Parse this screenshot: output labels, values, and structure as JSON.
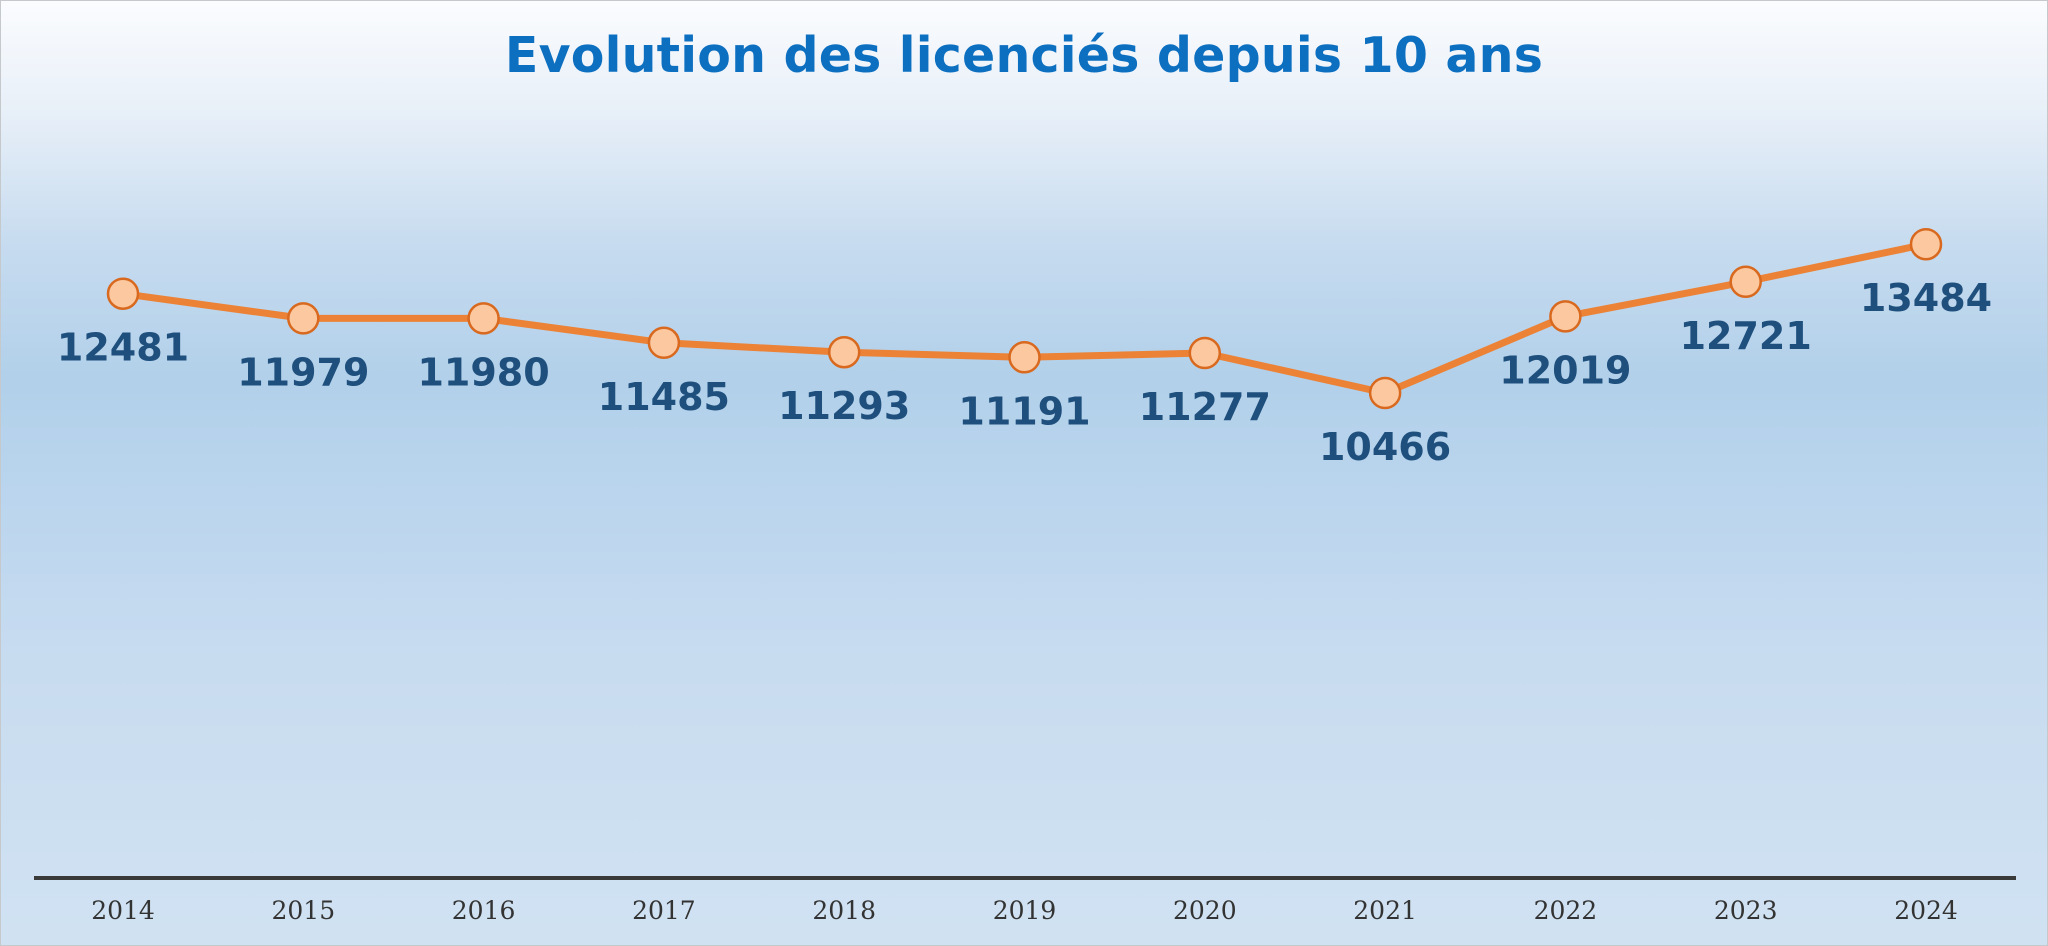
{
  "chart_data": {
    "type": "line",
    "title": "Evolution des licenciés depuis 10 ans",
    "categories": [
      "2014",
      "2015",
      "2016",
      "2017",
      "2018",
      "2019",
      "2020",
      "2021",
      "2022",
      "2023",
      "2024"
    ],
    "series": [
      {
        "values": [
          12481,
          11979,
          11980,
          11485,
          11293,
          11191,
          11277,
          10466,
          12019,
          12721,
          13484
        ],
        "data_labels": [
          "12481",
          "11979",
          "11980",
          "11485",
          "11293",
          "11191",
          "11277",
          "10466",
          "12019",
          "12721",
          "13484"
        ],
        "line_color": "#ec8236",
        "marker_fill": "#fcc8a0",
        "marker_stroke": "#d8691e"
      }
    ],
    "data_label_color": "#1e4f7d",
    "data_label_position": "below",
    "xlabel": "",
    "ylabel": "",
    "y_axis_visible": false,
    "grid": false,
    "legend": "none",
    "colors": {
      "title": "#0d6fc0",
      "axis_line": "#3a3a3a",
      "tick_label": "#333333"
    }
  }
}
